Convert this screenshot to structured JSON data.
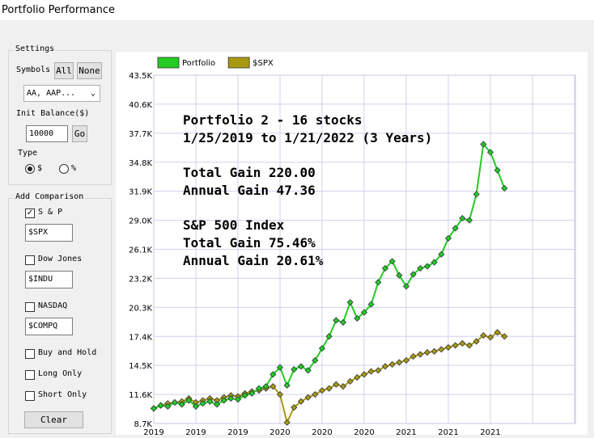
{
  "window": {
    "title": "Portfolio Performance"
  },
  "settings": {
    "heading": "Settings",
    "symbols_label": "Symbols",
    "all_button": "All",
    "none_button": "None",
    "symbols_dropdown": "AA, AAP...",
    "balance_label": "Init Balance($)",
    "balance_value": "10000",
    "go_button": "Go",
    "type_label": "Type",
    "type_options": [
      "$",
      "%"
    ]
  },
  "comparison": {
    "heading": "Add Comparison",
    "indices": [
      {
        "label": "S & P",
        "symbol": "$SPX"
      },
      {
        "label": "Dow Jones",
        "symbol": "$INDU"
      },
      {
        "label": "NASDAQ",
        "symbol": "$COMPQ"
      }
    ],
    "strategies": [
      "Buy and Hold",
      "Long Only",
      "Short Only"
    ],
    "clear_button": "Clear"
  },
  "chart_data": {
    "type": "line",
    "annotations": [
      "Portfolio 2 - 16 stocks",
      "1/25/2019 to 1/21/2022 (3 Years)",
      "Total Gain 220.00",
      "Annual Gain 47.36",
      "S&P 500 Index",
      "Total Gain 75.46%",
      "Annual Gain 20.61%"
    ],
    "categories": [
      "2019",
      null,
      null,
      null,
      null,
      null,
      "2019",
      null,
      null,
      null,
      null,
      null,
      "2019",
      null,
      null,
      null,
      null,
      null,
      "2020",
      null,
      null,
      null,
      null,
      null,
      "2020",
      null,
      null,
      null,
      null,
      null,
      "2020",
      null,
      null,
      null,
      null,
      null,
      "2021",
      null,
      null,
      null,
      null,
      null,
      "2021",
      null,
      null,
      null,
      null,
      null,
      "2021",
      null,
      null
    ],
    "series": [
      {
        "name": "Portfolio",
        "color": "#22cc22",
        "values": [
          10200,
          10500,
          10400,
          10800,
          10600,
          11000,
          10400,
          10700,
          10900,
          10600,
          11000,
          11200,
          11100,
          11500,
          11700,
          12200,
          12400,
          13600,
          14300,
          12500,
          14100,
          14400,
          14000,
          15000,
          16200,
          17400,
          19000,
          18800,
          20800,
          19200,
          19800,
          20600,
          22800,
          24200,
          24900,
          23500,
          22400,
          23600,
          24200,
          24400,
          24800,
          25600,
          27200,
          28200,
          29200,
          29000,
          31600,
          36600,
          35800,
          34000,
          32200
        ]
      },
      {
        "name": "$SPX",
        "color": "#a89a10",
        "values": [
          10200,
          10500,
          10700,
          10800,
          10900,
          11200,
          10800,
          11000,
          11200,
          11000,
          11300,
          11500,
          11400,
          11700,
          11900,
          12000,
          12200,
          12400,
          11600,
          8800,
          10300,
          10900,
          11300,
          11600,
          12000,
          12200,
          12600,
          12400,
          12900,
          13300,
          13600,
          13900,
          14000,
          14400,
          14600,
          14800,
          15000,
          15400,
          15600,
          15800,
          15900,
          16100,
          16300,
          16500,
          16700,
          16500,
          16900,
          17500,
          17300,
          17800,
          17400
        ]
      }
    ],
    "ylim": [
      8700,
      43500
    ],
    "yticks": [
      {
        "value": 8700,
        "label": "8.7K"
      },
      {
        "value": 11600,
        "label": "11.6K"
      },
      {
        "value": 14500,
        "label": "14.5K"
      },
      {
        "value": 17400,
        "label": "17.4K"
      },
      {
        "value": 20300,
        "label": "20.3K"
      },
      {
        "value": 23200,
        "label": "23.2K"
      },
      {
        "value": 26100,
        "label": "26.1K"
      },
      {
        "value": 29000,
        "label": "29.0K"
      },
      {
        "value": 31900,
        "label": "31.9K"
      },
      {
        "value": 34800,
        "label": "34.8K"
      },
      {
        "value": 37700,
        "label": "37.7K"
      },
      {
        "value": 40600,
        "label": "40.6K"
      },
      {
        "value": 43500,
        "label": "43.5K"
      }
    ],
    "grid": true,
    "legend": "top-left"
  }
}
